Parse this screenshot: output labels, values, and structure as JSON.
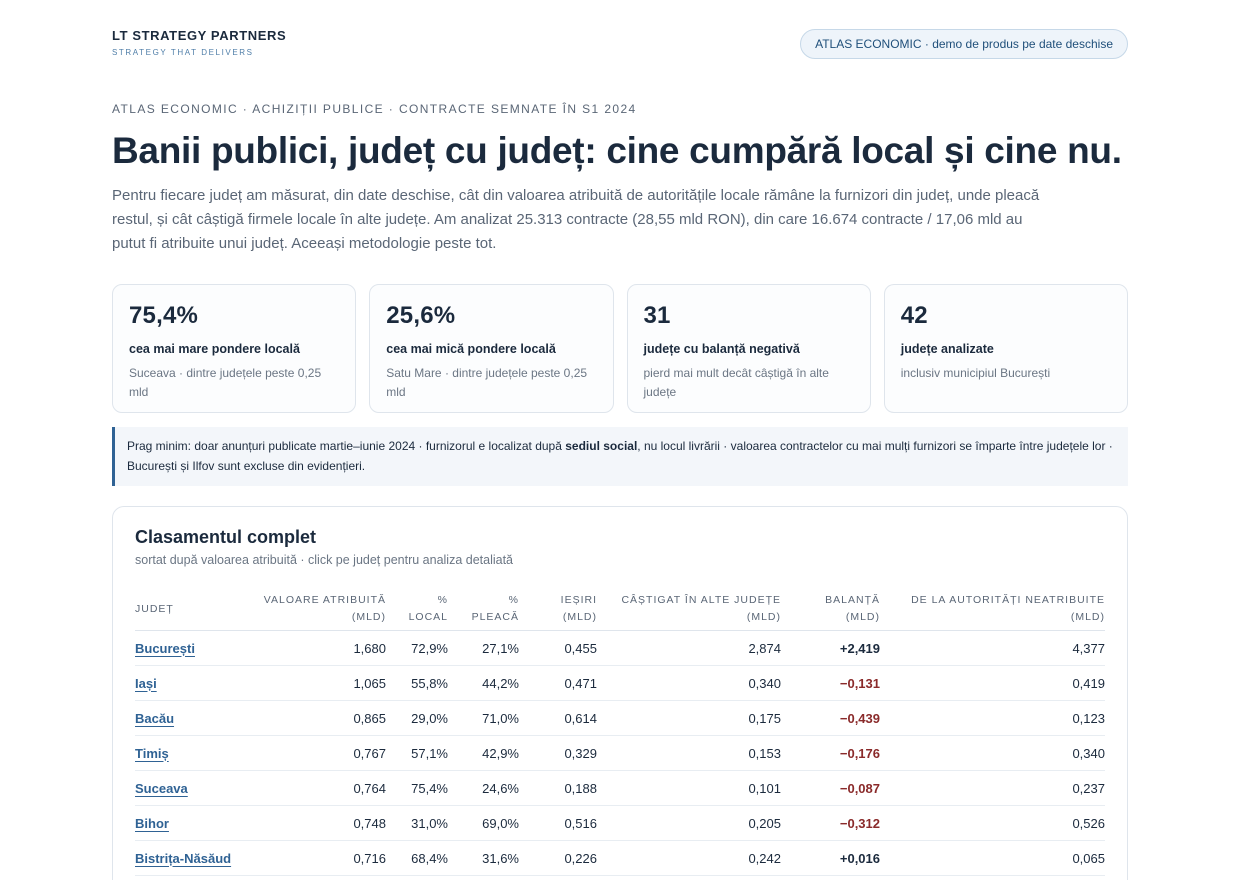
{
  "brand": {
    "name": "LT STRATEGY PARTNERS",
    "tagline": "STRATEGY THAT DELIVERS"
  },
  "top_pill": "ATLAS ECONOMIC · demo de produs pe date deschise",
  "eyebrow": "ATLAS ECONOMIC · ACHIZIȚII PUBLICE · CONTRACTE SEMNATE ÎN S1 2024",
  "headline": "Banii publici, județ cu județ: cine cumpără local și cine nu.",
  "lede": "Pentru fiecare județ am măsurat, din date deschise, cât din valoarea atribuită de autoritățile locale rămâne la furnizori din județ, unde pleacă restul, și cât câștigă firmele locale în alte județe. Am analizat 25.313 contracte (28,55 mld RON), din care 16.674 contracte / 17,06 mld au putut fi atribuite unui județ. Aceeași metodologie peste tot.",
  "kpis": [
    {
      "value": "75,4%",
      "label": "cea mai mare pondere locală",
      "note": "Suceava · dintre județele peste 0,25 mld"
    },
    {
      "value": "25,6%",
      "label": "cea mai mică pondere locală",
      "note": "Satu Mare · dintre județele peste 0,25 mld"
    },
    {
      "value": "31",
      "label": "județe cu balanță negativă",
      "note": "pierd mai mult decât câștigă în alte județe"
    },
    {
      "value": "42",
      "label": "județe analizate",
      "note": "inclusiv municipiul București"
    }
  ],
  "note": {
    "part1": "Prag minim: doar anunțuri publicate martie–iunie 2024 · furnizorul e localizat după ",
    "bold": "sediul social",
    "part2": ", nu locul livrării · valoarea contractelor cu mai mulți furnizori se împarte între județele lor · București și Ilfov sunt excluse din evidențieri."
  },
  "table": {
    "title": "Clasamentul complet",
    "subtitle": "sortat după valoarea atribuită · click pe județ pentru analiza detaliată",
    "headers": [
      [
        "JUDEȚ",
        ""
      ],
      [
        "VALOARE ATRIBUITĂ",
        "(MLD)"
      ],
      [
        "%",
        "LOCAL"
      ],
      [
        "%",
        "PLEACĂ"
      ],
      [
        "IEȘIRI",
        "(MLD)"
      ],
      [
        "CÂȘTIGAT ÎN ALTE JUDEȚE",
        "(MLD)"
      ],
      [
        "BALANȚĂ",
        "(MLD)"
      ],
      [
        "DE LA AUTORITĂȚI NEATRIBUITE",
        "(MLD)"
      ]
    ],
    "rows": [
      {
        "county": "București",
        "value": "1,680",
        "local": "72,9%",
        "leaves": "27,1%",
        "out": "0,455",
        "won": "2,874",
        "balance": "+2,419",
        "unattr": "4,377"
      },
      {
        "county": "Iași",
        "value": "1,065",
        "local": "55,8%",
        "leaves": "44,2%",
        "out": "0,471",
        "won": "0,340",
        "balance": "−0,131",
        "unattr": "0,419"
      },
      {
        "county": "Bacău",
        "value": "0,865",
        "local": "29,0%",
        "leaves": "71,0%",
        "out": "0,614",
        "won": "0,175",
        "balance": "−0,439",
        "unattr": "0,123"
      },
      {
        "county": "Timiș",
        "value": "0,767",
        "local": "57,1%",
        "leaves": "42,9%",
        "out": "0,329",
        "won": "0,153",
        "balance": "−0,176",
        "unattr": "0,340"
      },
      {
        "county": "Suceava",
        "value": "0,764",
        "local": "75,4%",
        "leaves": "24,6%",
        "out": "0,188",
        "won": "0,101",
        "balance": "−0,087",
        "unattr": "0,237"
      },
      {
        "county": "Bihor",
        "value": "0,748",
        "local": "31,0%",
        "leaves": "69,0%",
        "out": "0,516",
        "won": "0,205",
        "balance": "−0,312",
        "unattr": "0,526"
      },
      {
        "county": "Bistrița-Năsăud",
        "value": "0,716",
        "local": "68,4%",
        "leaves": "31,6%",
        "out": "0,226",
        "won": "0,242",
        "balance": "+0,016",
        "unattr": "0,065"
      }
    ]
  }
}
